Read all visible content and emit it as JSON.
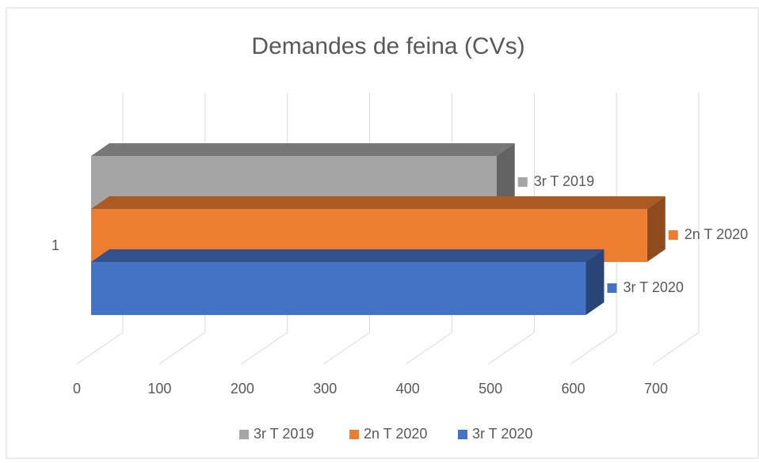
{
  "chart_data": {
    "type": "bar3d",
    "title": "Demandes de feina (CVs)",
    "categories": [
      "1"
    ],
    "series": [
      {
        "name": "3r T 2019",
        "color": "#a5a5a5",
        "values": [
          490
        ]
      },
      {
        "name": "2n T 2020",
        "color": "#ed7d31",
        "values": [
          672
        ]
      },
      {
        "name": "3r T 2020",
        "color": "#4472c4",
        "values": [
          598
        ]
      }
    ],
    "xlim": [
      0,
      700
    ],
    "xticks": [
      0,
      100,
      200,
      300,
      400,
      500,
      600,
      700
    ],
    "grid": true,
    "legend": "bottom"
  }
}
